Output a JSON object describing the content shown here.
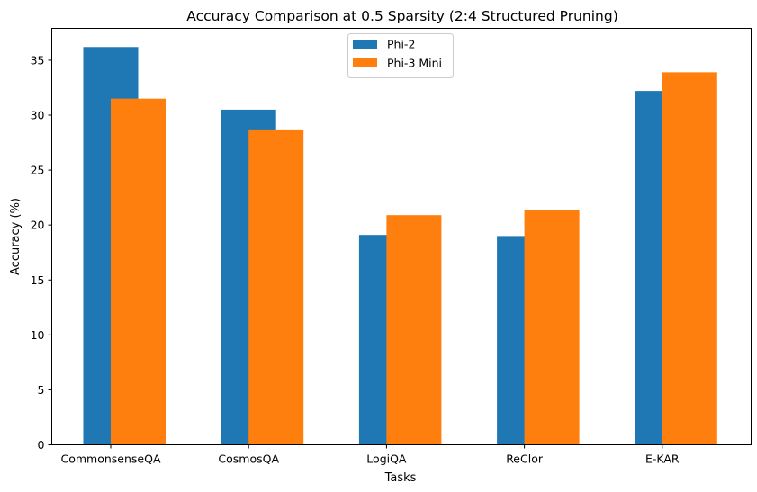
{
  "chart_data": {
    "type": "bar",
    "title": "Accuracy Comparison at 0.5 Sparsity (2:4 Structured Pruning)",
    "xlabel": "Tasks",
    "ylabel": "Accuracy (%)",
    "categories": [
      "CommonsenseQA",
      "CosmosQA",
      "LogiQA",
      "ReClor",
      "E-KAR"
    ],
    "series": [
      {
        "name": "Phi-2",
        "color": "#1f77b4",
        "values": [
          36.2,
          30.5,
          19.1,
          19.0,
          32.2
        ]
      },
      {
        "name": "Phi-3 Mini",
        "color": "#ff7f0e",
        "values": [
          31.5,
          28.7,
          20.9,
          21.4,
          33.9
        ]
      }
    ],
    "ylim": [
      0,
      37.9
    ],
    "yticks": [
      0,
      5,
      10,
      15,
      20,
      25,
      30,
      35
    ],
    "grid": false,
    "legend": "upper center"
  }
}
